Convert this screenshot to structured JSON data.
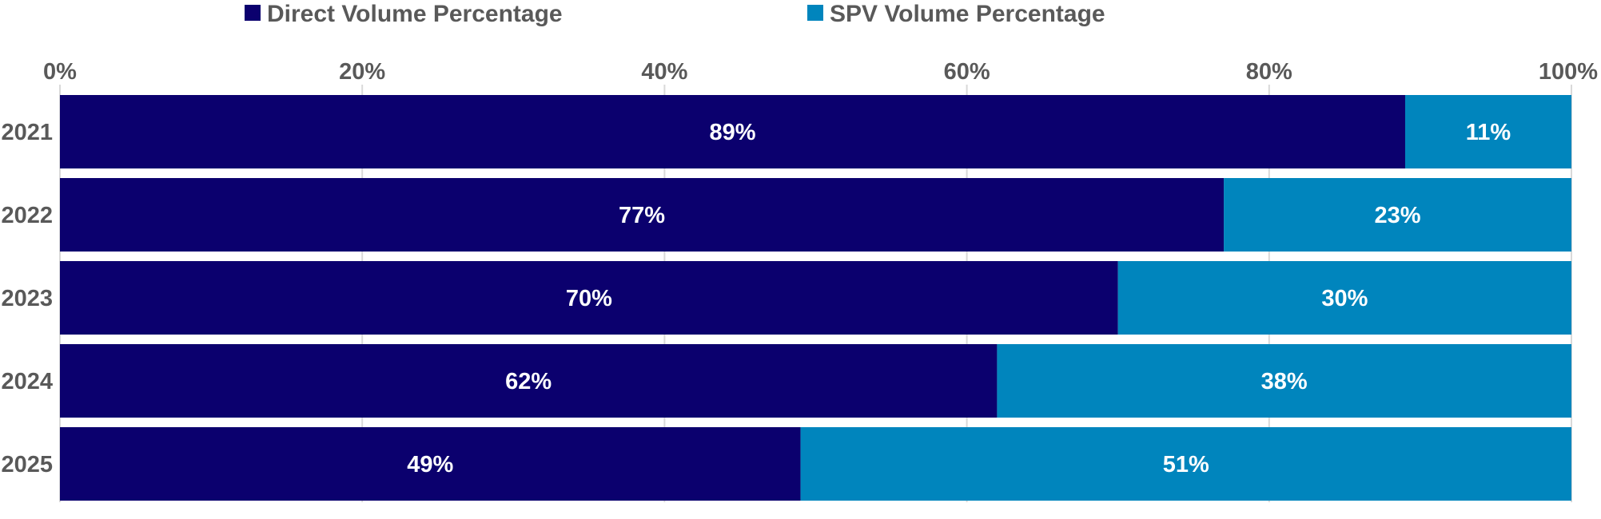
{
  "colors": {
    "direct": "#0b006e",
    "spv": "#0085bd",
    "axis_text": "#595959",
    "grid": "#d9d9d9",
    "label_text": "#ffffff"
  },
  "chart_data": {
    "type": "bar",
    "orientation": "horizontal",
    "stacked": true,
    "categories": [
      "2021",
      "2022",
      "2023",
      "2024",
      "2025"
    ],
    "series": [
      {
        "name": "Direct Volume Percentage",
        "values": [
          89,
          77,
          70,
          62,
          49
        ],
        "labels": [
          "89%",
          "77%",
          "70%",
          "62%",
          "49%"
        ],
        "color": "#0b006e"
      },
      {
        "name": "SPV Volume Percentage",
        "values": [
          11,
          23,
          30,
          38,
          51
        ],
        "labels": [
          "11%",
          "23%",
          "30%",
          "38%",
          "51%"
        ],
        "color": "#0085bd"
      }
    ],
    "xlim": [
      0,
      100
    ],
    "x_ticks": [
      0,
      20,
      40,
      60,
      80,
      100
    ],
    "x_tick_labels": [
      "0%",
      "20%",
      "40%",
      "60%",
      "80%",
      "100%"
    ],
    "x_axis_position": "top",
    "grid": true,
    "legend_position": "top"
  }
}
